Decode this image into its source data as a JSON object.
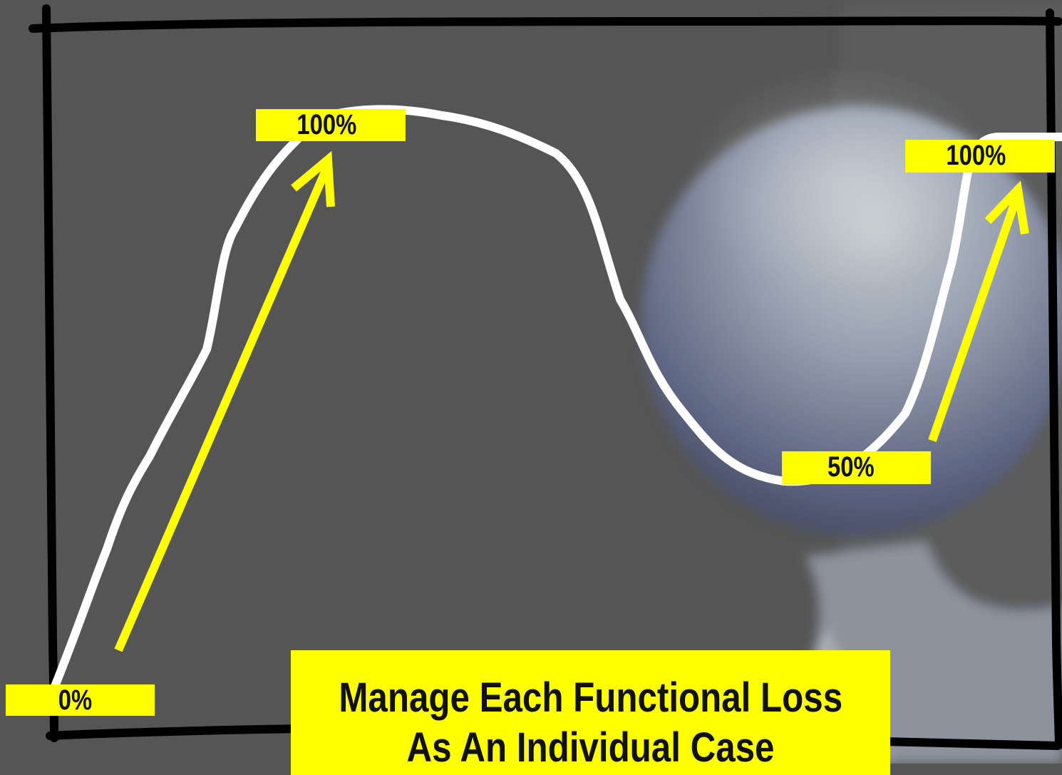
{
  "labels": {
    "start": "0%",
    "peak": "100%",
    "dip": "50%",
    "recovery": "100%"
  },
  "caption": {
    "line1": "Manage Each Functional Loss",
    "line2": "As An Individual Case"
  },
  "colors": {
    "background": "#555555",
    "highlight": "#ffff00",
    "curve": "#ffffff",
    "frame": "#000000",
    "text": "#111111"
  }
}
